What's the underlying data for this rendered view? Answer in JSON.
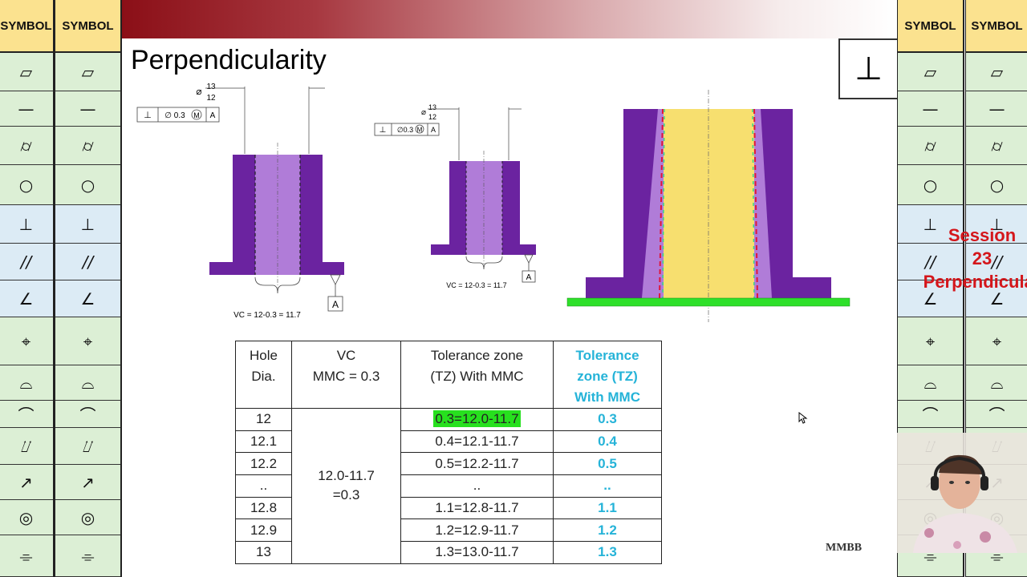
{
  "slide": {
    "title": "Perpendicularity",
    "perp_symbol": "⊥",
    "watermark": "MMBB",
    "session_line1": "Session",
    "session_line2": "23",
    "session_line3": "Perpendicular"
  },
  "symbol_columns": {
    "header": "SYMBOL",
    "symbols": [
      {
        "name": "flatness-icon",
        "glyph": "▱"
      },
      {
        "name": "straightness-icon",
        "glyph": "—"
      },
      {
        "name": "cylindricity-icon",
        "glyph": "⌭"
      },
      {
        "name": "circularity-icon",
        "glyph": "○"
      },
      {
        "name": "perpendicularity-icon",
        "glyph": "⊥"
      },
      {
        "name": "parallelism-icon",
        "glyph": "//"
      },
      {
        "name": "angularity-icon",
        "glyph": "∠"
      },
      {
        "name": "position-icon",
        "glyph": "⌖"
      },
      {
        "name": "surface-profile-icon",
        "glyph": "⌓"
      },
      {
        "name": "line-profile-icon",
        "glyph": "⌒"
      },
      {
        "name": "total-runout-icon",
        "glyph": "⌰"
      },
      {
        "name": "circular-runout-icon",
        "glyph": "↗"
      },
      {
        "name": "concentricity-icon",
        "glyph": "◎"
      },
      {
        "name": "symmetry-icon",
        "glyph": "⌯"
      }
    ]
  },
  "drawing1": {
    "dim_upper": "13",
    "dim_lower": "12",
    "diameter_symbol": "⌀",
    "fcf_symbol": "⊥",
    "fcf_tol": "∅ 0.3",
    "fcf_modifier": "M",
    "fcf_datum": "A",
    "datum_label": "A",
    "vc_text": "VC = 12-0.3 = 11.7"
  },
  "drawing2": {
    "dim_upper": "13",
    "dim_lower": "12",
    "diameter_symbol": "⌀",
    "fcf_symbol": "⊥",
    "fcf_tol": "∅0.3",
    "fcf_modifier": "M",
    "fcf_datum": "A",
    "datum_label": "A",
    "vc_text": "VC = 12-0.3 = 11.7"
  },
  "colors": {
    "part": "#6b23a0",
    "hole": "#b07cd8",
    "zone": "#f7df6f",
    "datum": "#2ee02a",
    "banner": "#8b0f17",
    "cyan": "#25b3d8",
    "session": "#d4161b"
  },
  "table": {
    "headers": {
      "hole": "Hole\nDia.",
      "vc_line1": "VC",
      "vc_line2": "MMC = 0.3",
      "tz_line1": "Tolerance zone",
      "tz_line2": "(TZ) With MMC",
      "tz2_line1": "Tolerance",
      "tz2_line2": "zone (TZ)",
      "tz2_line3": "With MMC"
    },
    "hole_line1": "Hole",
    "hole_line2": "Dia.",
    "vc_merged_line1": "12.0-11.7",
    "vc_merged_line2": "=0.3",
    "rows": [
      {
        "dia": "12",
        "tz": "0.3=12.0-11.7",
        "tz_value": "0.3"
      },
      {
        "dia": "12.1",
        "tz": "0.4=12.1-11.7",
        "tz_value": "0.4"
      },
      {
        "dia": "12.2",
        "tz": "0.5=12.2-11.7",
        "tz_value": "0.5"
      },
      {
        "dia": "..",
        "tz": "..",
        "tz_value": ".."
      },
      {
        "dia": "12.8",
        "tz": "1.1=12.8-11.7",
        "tz_value": "1.1"
      },
      {
        "dia": "12.9",
        "tz": "1.2=12.9-11.7",
        "tz_value": "1.2"
      },
      {
        "dia": "13",
        "tz": "1.3=13.0-11.7",
        "tz_value": "1.3"
      }
    ]
  }
}
